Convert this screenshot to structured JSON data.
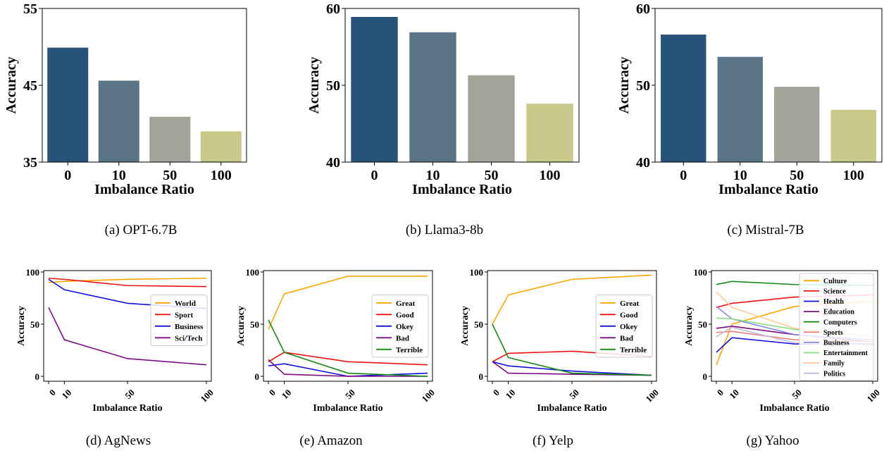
{
  "chart_data": [
    {
      "type": "bar",
      "caption": "(a) OPT-6.7B",
      "xlabel": "Imbalance Ratio",
      "ylabel": "Accuracy",
      "categories": [
        "0",
        "10",
        "50",
        "100"
      ],
      "values": [
        49.9,
        45.6,
        40.9,
        39.0
      ],
      "ylim": [
        35,
        55
      ],
      "yticks": [
        "35",
        "45",
        "55"
      ],
      "colors": [
        "#27527a",
        "#5b7587",
        "#a2a499",
        "#c9c98a"
      ]
    },
    {
      "type": "bar",
      "caption": "(b) Llama3-8b",
      "xlabel": "Imbalance Ratio",
      "ylabel": "Accuracy",
      "categories": [
        "0",
        "10",
        "50",
        "100"
      ],
      "values": [
        58.9,
        56.9,
        51.3,
        47.6
      ],
      "ylim": [
        40,
        60
      ],
      "yticks": [
        "40",
        "50",
        "60"
      ],
      "colors": [
        "#27527a",
        "#5b7587",
        "#a2a499",
        "#c9c98a"
      ]
    },
    {
      "type": "bar",
      "caption": "(c) Mistral-7B",
      "xlabel": "Imbalance Ratio",
      "ylabel": "Accuracy",
      "categories": [
        "0",
        "10",
        "50",
        "100"
      ],
      "values": [
        56.6,
        53.7,
        49.8,
        46.8
      ],
      "ylim": [
        40,
        60
      ],
      "yticks": [
        "40",
        "50",
        "60"
      ],
      "colors": [
        "#27527a",
        "#5b7587",
        "#a2a499",
        "#c9c98a"
      ]
    },
    {
      "type": "line",
      "caption": "(d) AgNews",
      "xlabel": "Imbalance Ratio",
      "ylabel": "Accuracy",
      "x": [
        0,
        10,
        50,
        100
      ],
      "xticks": [
        "0",
        "10",
        "50",
        "100"
      ],
      "ylim": [
        0,
        100
      ],
      "yticks": [
        "0",
        "50",
        "100"
      ],
      "legend_position": "center-right",
      "series": [
        {
          "name": "World",
          "color": "#ffa500",
          "values": [
            90,
            91,
            93,
            94
          ]
        },
        {
          "name": "Sport",
          "color": "#ee1111",
          "values": [
            94,
            93,
            87,
            86
          ]
        },
        {
          "name": "Business",
          "color": "#1111dd",
          "values": [
            93,
            83,
            70,
            65
          ]
        },
        {
          "name": "Sci/Tech",
          "color": "#7a0a86",
          "values": [
            66,
            35,
            17,
            11
          ]
        }
      ]
    },
    {
      "type": "line",
      "caption": "(e) Amazon",
      "xlabel": "Imbalance Ratio",
      "ylabel": "Accuracy",
      "x": [
        0,
        10,
        50,
        100
      ],
      "xticks": [
        "0",
        "10",
        "50",
        "100"
      ],
      "ylim": [
        0,
        100
      ],
      "yticks": [
        "0",
        "50",
        "100"
      ],
      "legend_position": "center-right",
      "series": [
        {
          "name": "Great",
          "color": "#ffa500",
          "values": [
            45,
            79,
            96,
            96
          ]
        },
        {
          "name": "Good",
          "color": "#ee1111",
          "values": [
            14,
            23,
            14,
            11
          ]
        },
        {
          "name": "Okey",
          "color": "#1111dd",
          "values": [
            10,
            12,
            0,
            3
          ]
        },
        {
          "name": "Bad",
          "color": "#7a0a86",
          "values": [
            16,
            2,
            0,
            0
          ]
        },
        {
          "name": "Terrible",
          "color": "#128a12",
          "values": [
            54,
            23,
            3,
            0
          ]
        }
      ]
    },
    {
      "type": "line",
      "caption": "(f) Yelp",
      "xlabel": "Imbalance Ratio",
      "ylabel": "Accuracy",
      "x": [
        0,
        10,
        50,
        100
      ],
      "xticks": [
        "0",
        "10",
        "50",
        "100"
      ],
      "ylim": [
        0,
        100
      ],
      "yticks": [
        "0",
        "50",
        "100"
      ],
      "legend_position": "center-right",
      "series": [
        {
          "name": "Great",
          "color": "#ffa500",
          "values": [
            50,
            78,
            93,
            97
          ]
        },
        {
          "name": "Good",
          "color": "#ee1111",
          "values": [
            14,
            22,
            24,
            19
          ]
        },
        {
          "name": "Okey",
          "color": "#1111dd",
          "values": [
            14,
            10,
            5,
            1
          ]
        },
        {
          "name": "Bad",
          "color": "#7a0a86",
          "values": [
            14,
            3,
            2,
            1
          ]
        },
        {
          "name": "Terrible",
          "color": "#128a12",
          "values": [
            50,
            18,
            3,
            1
          ]
        }
      ]
    },
    {
      "type": "line",
      "caption": "(g) Yahoo",
      "xlabel": "Imbalance Ratio",
      "ylabel": "Accuracy",
      "x": [
        0,
        10,
        50,
        100
      ],
      "xticks": [
        "0",
        "10",
        "50",
        "100"
      ],
      "ylim": [
        0,
        100
      ],
      "yticks": [
        "0",
        "50",
        "100"
      ],
      "legend_position": "upper-right",
      "series": [
        {
          "name": "Culture",
          "color": "#ffa500",
          "values": [
            11,
            50,
            67,
            72
          ]
        },
        {
          "name": "Science",
          "color": "#ee1111",
          "values": [
            66,
            70,
            76,
            78
          ]
        },
        {
          "name": "Health",
          "color": "#1111dd",
          "values": [
            23,
            37,
            31,
            31
          ]
        },
        {
          "name": "Education",
          "color": "#7a0a86",
          "values": [
            46,
            48,
            40,
            33
          ]
        },
        {
          "name": "Computers",
          "color": "#128a12",
          "values": [
            88,
            91,
            88,
            87
          ]
        },
        {
          "name": "Sports",
          "color": "#f08080",
          "values": [
            42,
            43,
            35,
            33
          ]
        },
        {
          "name": "Business",
          "color": "#8888ee",
          "values": [
            67,
            55,
            40,
            35
          ]
        },
        {
          "name": "Entertainment",
          "color": "#88dd88",
          "values": [
            56,
            55,
            45,
            38
          ]
        },
        {
          "name": "Family",
          "color": "#ffcc99",
          "values": [
            81,
            66,
            46,
            38
          ]
        },
        {
          "name": "Politics",
          "color": "#bbbbdd",
          "values": [
            38,
            47,
            32,
            30
          ]
        }
      ]
    }
  ]
}
